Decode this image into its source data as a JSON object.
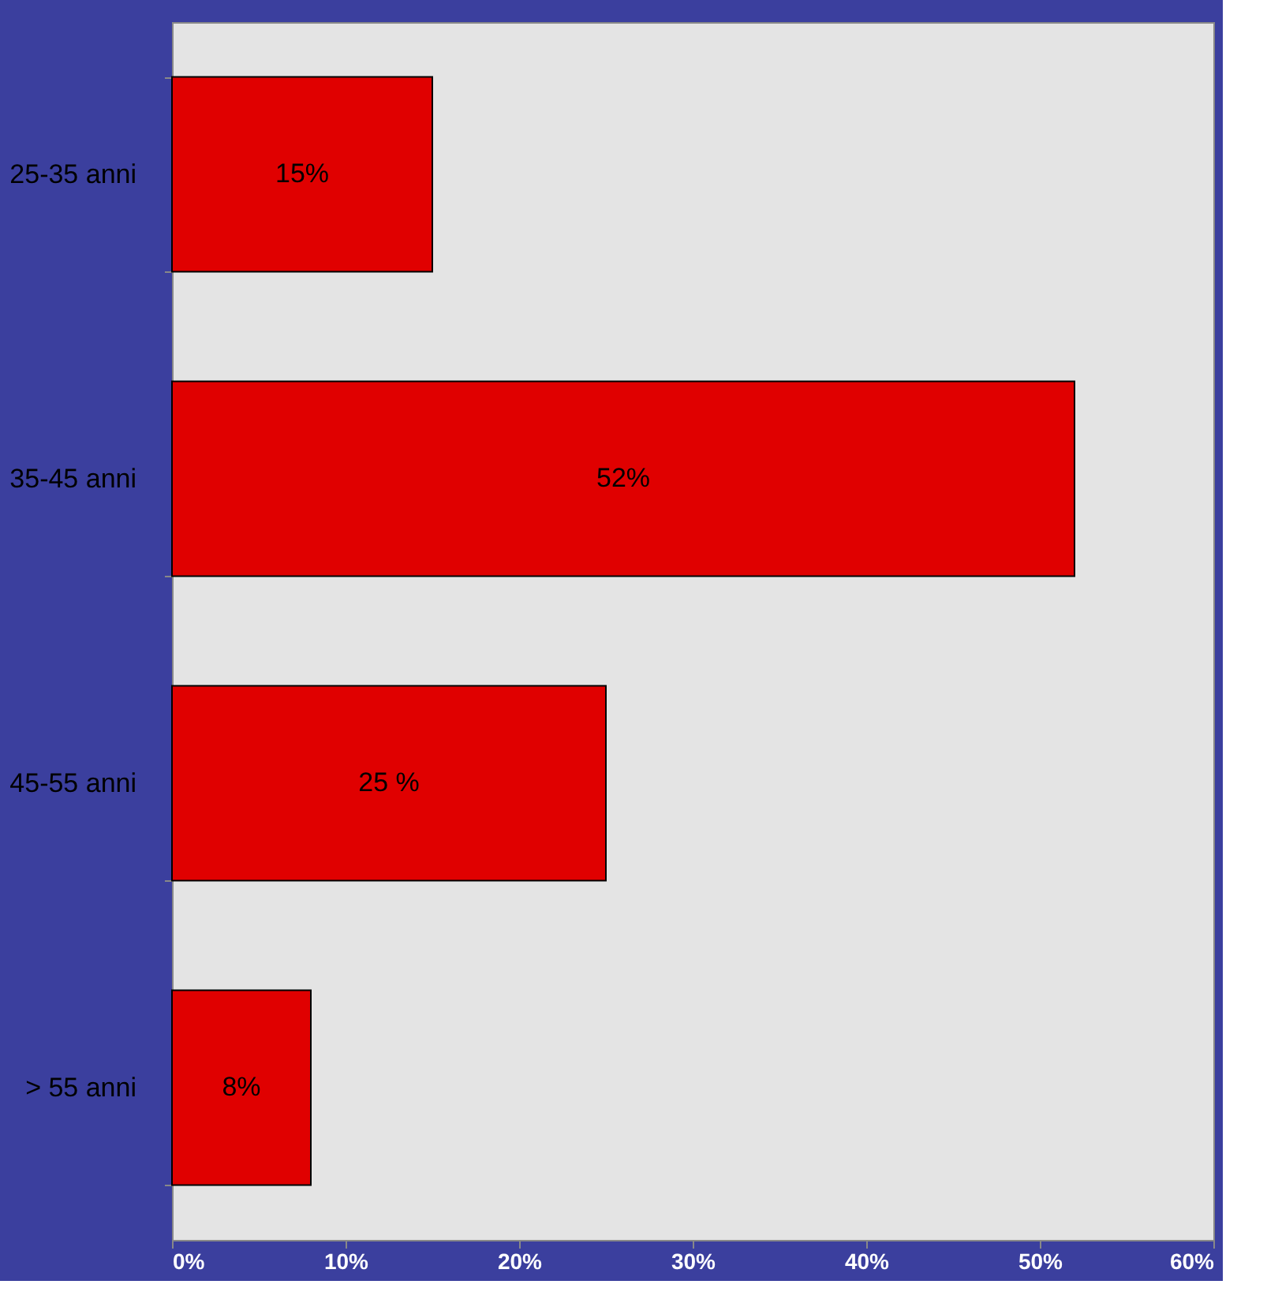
{
  "chart_data": {
    "type": "bar",
    "orientation": "horizontal",
    "categories": [
      "25-35 anni",
      "35-45 anni",
      "45-55 anni",
      "> 55 anni"
    ],
    "values": [
      15,
      52,
      25,
      8
    ],
    "value_labels": [
      "15%",
      "52%",
      "25 %",
      "8%"
    ],
    "color": "#e00000",
    "xlim": [
      0,
      60
    ],
    "xticks": [
      {
        "value": 0,
        "label": "0%"
      },
      {
        "value": 10,
        "label": "10%"
      },
      {
        "value": 20,
        "label": "20%"
      },
      {
        "value": 30,
        "label": "30%"
      },
      {
        "value": 40,
        "label": "40%"
      },
      {
        "value": 50,
        "label": "50%"
      },
      {
        "value": 60,
        "label": "60%"
      }
    ],
    "grid": false
  }
}
